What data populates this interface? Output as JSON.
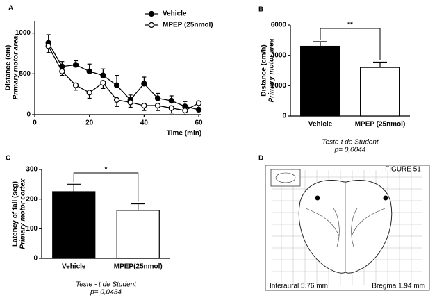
{
  "chart_data": [
    {
      "type": "line",
      "panel": "A",
      "xlabel": "Time (min)",
      "ylabel": "Distance (cm)",
      "ylabel_sub": "Primary motor area",
      "x": [
        5,
        10,
        15,
        20,
        25,
        30,
        35,
        40,
        45,
        50,
        55,
        60
      ],
      "xlim": [
        0,
        61
      ],
      "xticks": [
        0,
        20,
        40,
        60
      ],
      "ylim": [
        0,
        1150
      ],
      "yticks": [
        0,
        500,
        1000
      ],
      "series": [
        {
          "name": "Vehicle",
          "color": "#000000",
          "marker": "filled",
          "values": [
            880,
            590,
            610,
            530,
            480,
            360,
            180,
            380,
            200,
            170,
            100,
            60
          ],
          "errors": [
            100,
            60,
            50,
            90,
            80,
            120,
            60,
            80,
            60,
            60,
            60,
            60
          ]
        },
        {
          "name": "MPEP (25nmol)",
          "color": "#000000",
          "marker": "open",
          "values": [
            840,
            530,
            360,
            270,
            390,
            180,
            150,
            110,
            110,
            80,
            50,
            140
          ],
          "errors": [
            80,
            50,
            60,
            70,
            70,
            80,
            60,
            60,
            60,
            60,
            50,
            90
          ]
        }
      ]
    },
    {
      "type": "bar",
      "panel": "B",
      "ylabel": "Distance (cm/h)",
      "ylabel_sub": "Primary motor area",
      "categories": [
        "Vehicle",
        "MPEP (25nmol)"
      ],
      "values": [
        4600,
        3200
      ],
      "errors": [
        300,
        350
      ],
      "colors": [
        "#000000",
        "#ffffff"
      ],
      "ylim": [
        0,
        6000
      ],
      "yticks": [
        0,
        2000,
        4000,
        6000
      ],
      "annotation": "**",
      "notes": [
        "Teste-t de Student",
        "p= 0,0044"
      ]
    },
    {
      "type": "bar",
      "panel": "C",
      "ylabel": "Latency of fall (seg)",
      "ylabel_sub": "Primary motor cortex",
      "categories": [
        "Vehicle",
        "MPEP(25nmol)"
      ],
      "values": [
        225,
        162
      ],
      "errors": [
        25,
        22
      ],
      "colors": [
        "#000000",
        "#ffffff"
      ],
      "ylim": [
        0,
        300
      ],
      "yticks": [
        0,
        100,
        200,
        300
      ],
      "annotation": "*",
      "notes": [
        "Teste - t de Student",
        "p= 0,0434"
      ]
    },
    {
      "type": "diagram",
      "panel": "D",
      "texts": [
        "FIGURE 51",
        "Interaural 5.76 mm",
        "Bregma 1.94 mm"
      ]
    }
  ]
}
